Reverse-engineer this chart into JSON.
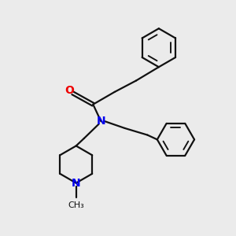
{
  "background_color": "#ebebeb",
  "bond_color": "#111111",
  "N_color": "#0000ee",
  "O_color": "#ee0000",
  "line_width": 1.6,
  "figsize": [
    3.0,
    3.0
  ],
  "dpi": 100,
  "xlim": [
    0,
    10
  ],
  "ylim": [
    0,
    10
  ]
}
